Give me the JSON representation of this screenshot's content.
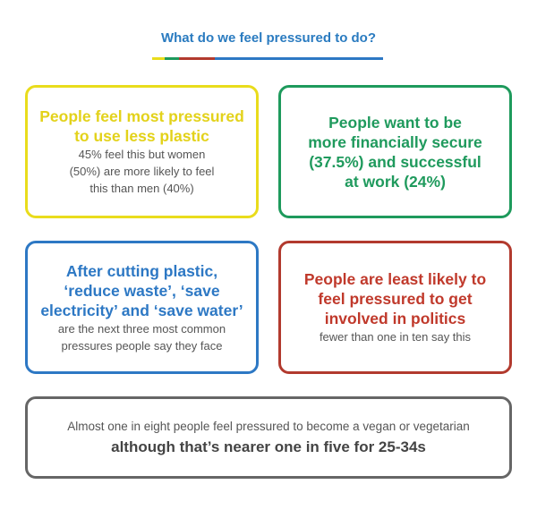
{
  "title": "What do we feel pressured to do?",
  "colors": {
    "title": "#2a7bc0",
    "yellow": "#e9dc1c",
    "green": "#1e9a5c",
    "blue": "#2d78c4",
    "red": "#b23a2e",
    "grey": "#666666",
    "body_text": "#555555"
  },
  "cards": {
    "plastic": {
      "headline_1": "People feel most pressured",
      "headline_2": "to use less plastic",
      "body_1": "45% feel this but women",
      "body_2": "(50%) are more likely to feel",
      "body_3": "this than men (40%)"
    },
    "finance": {
      "headline_1": "People want to be",
      "headline_2": "more financially secure",
      "headline_3": "(37.5%) and successful",
      "headline_4": "at work (24%)"
    },
    "waste": {
      "headline_1": "After cutting plastic,",
      "headline_2": "‘reduce waste’, ‘save",
      "headline_3": "electricity’ and ‘save water’",
      "body_1": "are the next three most common",
      "body_2": "pressures people say they face"
    },
    "politics": {
      "headline_1": "People are least likely to",
      "headline_2": "feel pressured to get",
      "headline_3": "involved in politics",
      "body_1": "fewer than one in ten say this"
    },
    "vegan": {
      "body_1": "Almost one in eight people feel pressured to become a vegan or vegetarian",
      "headline_1": "although that’s nearer one in five for 25-34s"
    }
  }
}
